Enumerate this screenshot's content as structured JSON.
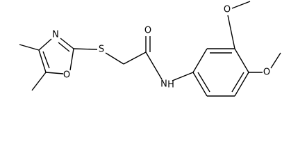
{
  "atoms": {
    "ring_n": "N",
    "ring_o": "O",
    "sulfur": "S",
    "carbonyl_o": "O",
    "amide_n": "N",
    "amide_h": "H",
    "methoxy_o1": "O",
    "methoxy_o2": "O"
  }
}
